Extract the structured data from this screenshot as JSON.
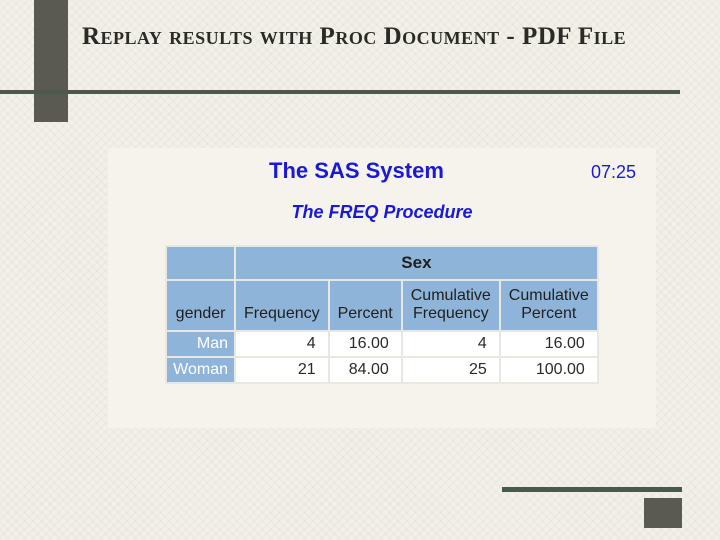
{
  "slide": {
    "title": "Replay results with Proc Document - PDF File"
  },
  "report": {
    "system_title": "The SAS System",
    "time": "07:25",
    "procedure_title": "The FREQ Procedure",
    "table": {
      "span_header": "Sex",
      "columns": {
        "gender": "gender",
        "frequency": "Frequency",
        "percent": "Percent",
        "cum_frequency_l1": "Cumulative",
        "cum_frequency_l2": "Frequency",
        "cum_percent_l1": "Cumulative",
        "cum_percent_l2": "Percent"
      },
      "rows": [
        {
          "gender": "Man",
          "frequency": "4",
          "percent": "16.00",
          "cum_frequency": "4",
          "cum_percent": "16.00"
        },
        {
          "gender": "Woman",
          "frequency": "21",
          "percent": "84.00",
          "cum_frequency": "25",
          "cum_percent": "100.00"
        }
      ]
    },
    "styling": {
      "header_bg": "#8fb4d9",
      "title_color": "#1a1ad4",
      "cell_bg": "#ffffff",
      "row_header_text": "#ffffff"
    }
  }
}
